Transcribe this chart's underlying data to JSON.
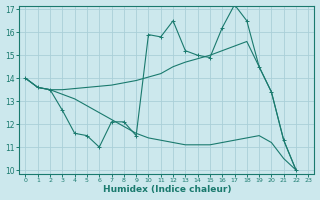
{
  "xlabel": "Humidex (Indice chaleur)",
  "background_color": "#cce8ed",
  "grid_color": "#aacfd8",
  "line_color": "#1a7a6e",
  "xlim": [
    -0.5,
    23.5
  ],
  "ylim": [
    9.85,
    17.15
  ],
  "yticks": [
    10,
    11,
    12,
    13,
    14,
    15,
    16,
    17
  ],
  "xticks": [
    0,
    1,
    2,
    3,
    4,
    5,
    6,
    7,
    8,
    9,
    10,
    11,
    12,
    13,
    14,
    15,
    16,
    17,
    18,
    19,
    20,
    21,
    22,
    23
  ],
  "line1_x": [
    0,
    1,
    2,
    3,
    4,
    5,
    6,
    7,
    8,
    9,
    10,
    11,
    12,
    13,
    14,
    15,
    16,
    17,
    18,
    19,
    20,
    21,
    22
  ],
  "line1_y": [
    14.0,
    13.6,
    13.5,
    12.6,
    11.6,
    11.5,
    11.0,
    12.1,
    12.1,
    11.5,
    15.9,
    15.8,
    16.5,
    15.2,
    15.0,
    14.9,
    16.2,
    17.2,
    16.5,
    14.5,
    13.4,
    11.3,
    10.0
  ],
  "line2_x": [
    0,
    1,
    2,
    3,
    4,
    5,
    6,
    7,
    8,
    9,
    10,
    11,
    12,
    13,
    14,
    15,
    16,
    17,
    18,
    19,
    20,
    21,
    22
  ],
  "line2_y": [
    14.0,
    13.6,
    13.5,
    13.5,
    13.55,
    13.6,
    13.65,
    13.7,
    13.8,
    13.9,
    14.05,
    14.2,
    14.5,
    14.7,
    14.85,
    15.0,
    15.2,
    15.4,
    15.6,
    14.5,
    13.4,
    11.3,
    10.0
  ],
  "line3_x": [
    0,
    1,
    2,
    3,
    4,
    5,
    6,
    7,
    8,
    9,
    10,
    11,
    12,
    13,
    14,
    15,
    16,
    17,
    18,
    19,
    20,
    21,
    22
  ],
  "line3_y": [
    14.0,
    13.6,
    13.5,
    13.3,
    13.1,
    12.8,
    12.5,
    12.2,
    11.9,
    11.6,
    11.4,
    11.3,
    11.2,
    11.1,
    11.1,
    11.1,
    11.2,
    11.3,
    11.4,
    11.5,
    11.2,
    10.5,
    10.0
  ]
}
